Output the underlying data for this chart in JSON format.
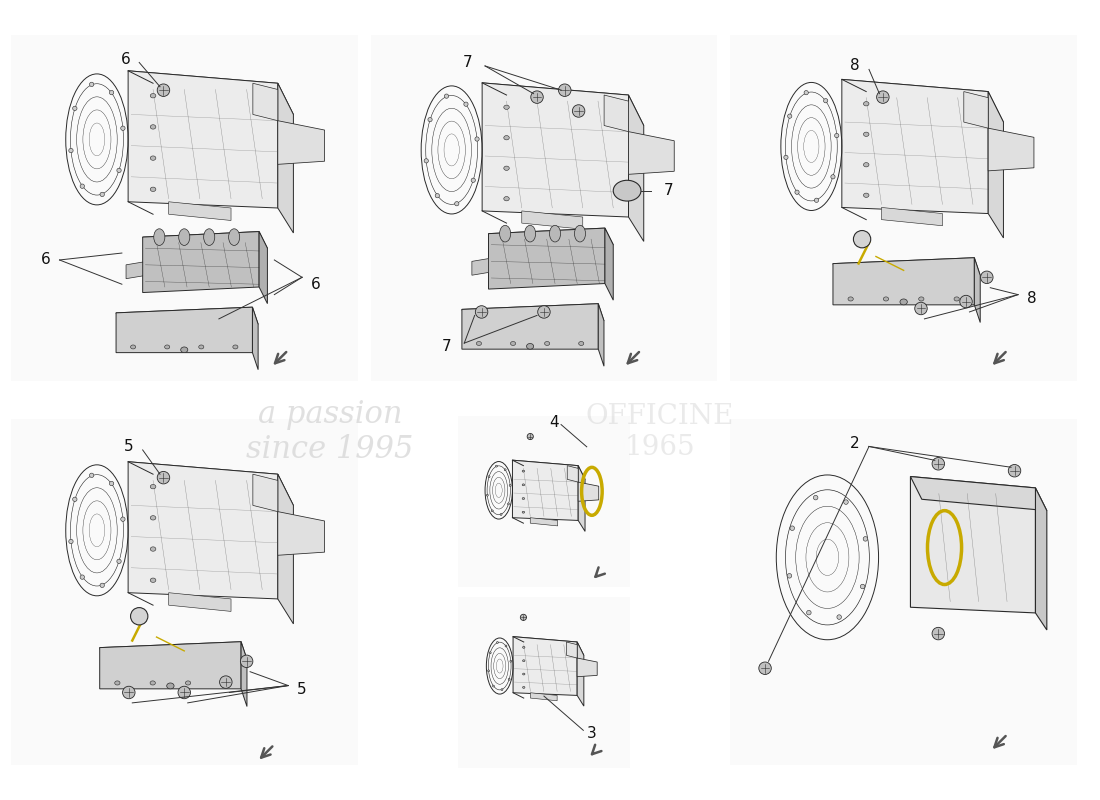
{
  "bg_color": "#ffffff",
  "panel_bg": "#f5f5f5",
  "panel_border_color": "#999999",
  "line_color": "#2a2a2a",
  "detail_color": "#555555",
  "label_color": "#111111",
  "yellow_color": "#c8aa00",
  "arrow_color": "#444444",
  "watermark1": "a passion\nsince 1995",
  "watermark2": "OFFICINE\n1965",
  "panels": [
    {
      "id": "top_left",
      "part": "6",
      "row": 0,
      "col": 0
    },
    {
      "id": "top_mid",
      "part": "7",
      "row": 0,
      "col": 1
    },
    {
      "id": "top_right",
      "part": "8",
      "row": 0,
      "col": 2
    },
    {
      "id": "bot_left",
      "part": "5",
      "row": 1,
      "col": 0
    },
    {
      "id": "bot_right",
      "part": "2",
      "row": 1,
      "col": 2
    }
  ],
  "subpanels": [
    {
      "id": "bot_mid_top",
      "part": "4"
    },
    {
      "id": "bot_mid_bot",
      "part": "3"
    }
  ]
}
